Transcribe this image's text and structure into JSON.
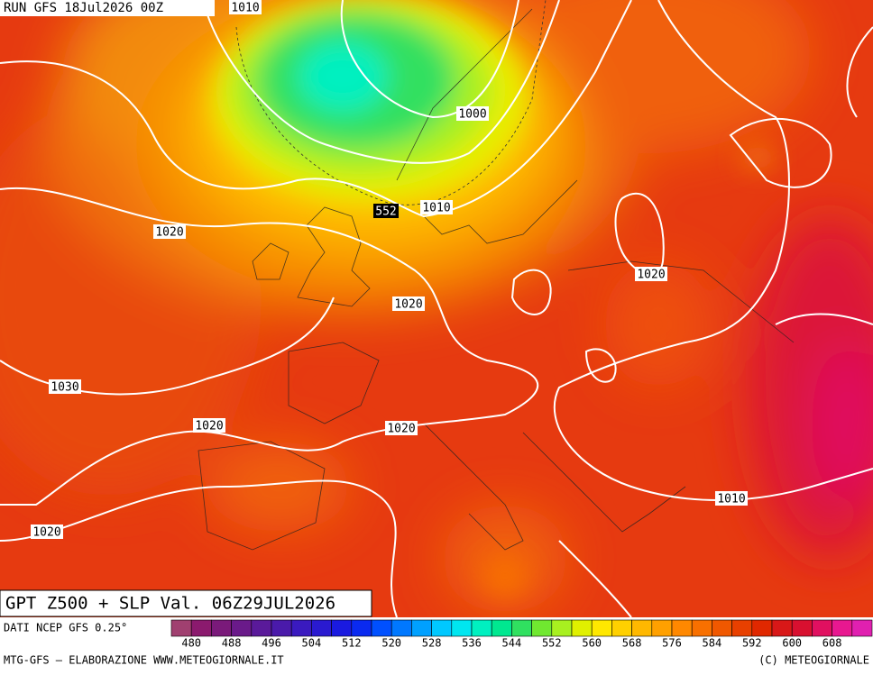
{
  "header": {
    "run": "RUN GFS 18Jul2026 00Z"
  },
  "map": {
    "contour_labels": [
      "1010",
      "1000",
      "552",
      "1010",
      "1020",
      "1020",
      "1020",
      "1030",
      "1020",
      "1020",
      "1010",
      "1020"
    ]
  },
  "footer": {
    "title": "GPT Z500 + SLP Val. 06Z29JUL2026",
    "source": "DATI NCEP GFS 0.25°",
    "colorbar": {
      "ticks": [
        480,
        488,
        496,
        504,
        512,
        520,
        528,
        536,
        544,
        552,
        560,
        568,
        576,
        584,
        592,
        600,
        608
      ],
      "colors": [
        "#a04070",
        "#8b1a6e",
        "#7a1a7a",
        "#6a1a8a",
        "#5a1a9a",
        "#4a1aaa",
        "#3a1abf",
        "#2a1ad0",
        "#1a1ae0",
        "#0a2af0",
        "#0050ff",
        "#0078ff",
        "#00a0ff",
        "#00c8ff",
        "#00e6f0",
        "#00f0c0",
        "#00e890",
        "#30e060",
        "#70e830",
        "#a8f020",
        "#e0f000",
        "#ffe800",
        "#ffd000",
        "#ffb800",
        "#ffa000",
        "#ff8800",
        "#f87000",
        "#f05800",
        "#e84000",
        "#e02800",
        "#d81818",
        "#d81030",
        "#e01060",
        "#e81890",
        "#e020b0"
      ]
    },
    "credits_left": "MTG-GFS — ELABORAZIONE WWW.METEOGIORNALE.IT",
    "credits_right": "(C) METEOGIORNALE"
  }
}
